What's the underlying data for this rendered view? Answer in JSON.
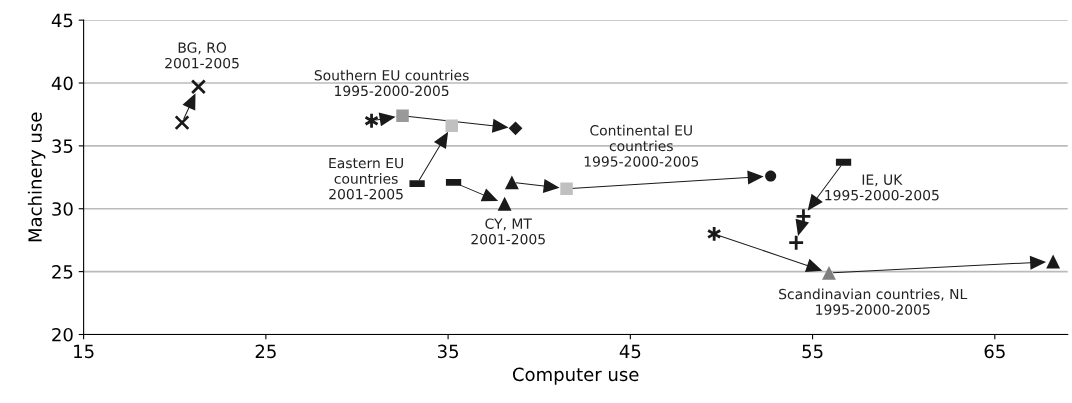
{
  "chart_data": {
    "type": "scatter",
    "xlabel": "Computer use",
    "ylabel": "Machinery use",
    "xlim": [
      15,
      69
    ],
    "ylim": [
      20,
      45
    ],
    "xticks": [
      15,
      25,
      35,
      45,
      55,
      65
    ],
    "yticks": [
      20,
      25,
      30,
      35,
      40,
      45
    ],
    "grid": "y",
    "series": [
      {
        "marker": "cross",
        "color": "#1a1a1a",
        "x": [
          20.4,
          21.3
        ],
        "values": [
          36.85,
          39.7
        ]
      },
      {
        "marker": "cross",
        "color": "#1a1a1a",
        "x": [
          30.8,
          49.6
        ],
        "values": [
          37.0,
          28.0
        ]
      },
      {
        "marker": "square",
        "color": "#999999",
        "x": [
          32.5
        ],
        "values": [
          37.4
        ]
      },
      {
        "marker": "diamond",
        "color": "#1a1a1a",
        "x": [
          38.7
        ],
        "values": [
          36.4
        ]
      },
      {
        "marker": "square",
        "color": "#c0c0c0",
        "x": [
          35.2,
          41.5
        ],
        "values": [
          36.6,
          31.6
        ]
      },
      {
        "marker": "square",
        "color": "#1a1a1a",
        "x": [
          33.3,
          35.3,
          56.7
        ],
        "values": [
          32.0,
          32.1,
          33.7
        ]
      },
      {
        "marker": "triangle",
        "color": "#1a1a1a",
        "x": [
          38.1,
          38.5,
          68.2
        ],
        "values": [
          30.4,
          32.1,
          25.8
        ]
      },
      {
        "marker": "circle",
        "color": "#1a1a1a",
        "x": [
          52.7
        ],
        "values": [
          32.6
        ]
      },
      {
        "marker": "cross",
        "color": "#1a1a1a",
        "x": [
          54.5,
          54.1
        ],
        "values": [
          29.4,
          27.3
        ]
      },
      {
        "marker": "triangle",
        "color": "#808080",
        "x": [
          55.9
        ],
        "values": [
          24.9
        ]
      }
    ],
    "annotations": [
      "BG, RO\n2001-2005",
      "Southern EU countries\n1995-2000-2005",
      "Eastern EU\ncountries\n2001-2005",
      "CY, MT\n2001-2005",
      "Continental EU\ncountries\n1995-2000-2005",
      "IE, UK\n1995-2000-2005",
      "Scandinavian countries, NL\n1995-2000-2005"
    ]
  }
}
